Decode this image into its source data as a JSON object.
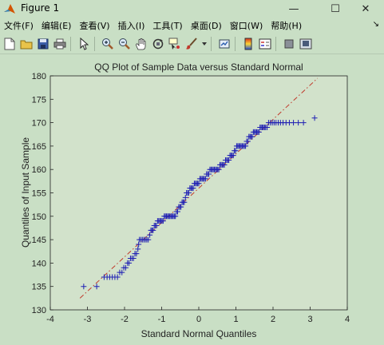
{
  "window": {
    "title": "Figure 1",
    "minimize_glyph": "—",
    "maximize_glyph": "☐",
    "close_glyph": "✕"
  },
  "menubar": {
    "items": [
      "文件(F)",
      "编辑(E)",
      "查看(V)",
      "插入(I)",
      "工具(T)",
      "桌面(D)",
      "窗口(W)",
      "帮助(H)"
    ],
    "overflow_arrow": "↘"
  },
  "toolbar": {
    "icons": [
      "new-figure-icon",
      "open-file-icon",
      "save-icon",
      "print-icon",
      "select-arrow-icon",
      "zoom-in-icon",
      "zoom-out-icon",
      "pan-hand-icon",
      "rotate-3d-icon",
      "data-cursor-icon",
      "brush-icon",
      "link-plot-icon",
      "colorbar-icon",
      "legend-icon",
      "hide-plot-tools-icon",
      "show-plot-tools-icon"
    ]
  },
  "colors": {
    "figure_bg": "#c9dfc5",
    "axes_bg": "#d2e2cb",
    "marker": "#1f1fb4",
    "reference_line": "#c0392b"
  },
  "chart_data": {
    "type": "scatter",
    "title": "QQ Plot of Sample Data versus Standard Normal",
    "xlabel": "Standard Normal Quantiles",
    "ylabel": "Quantiles of Input Sample",
    "xlim": [
      -4,
      4
    ],
    "ylim": [
      130,
      180
    ],
    "xticks": [
      "-4",
      "-3",
      "-2",
      "-1",
      "0",
      "1",
      "2",
      "3",
      "4"
    ],
    "yticks": [
      "130",
      "135",
      "140",
      "145",
      "150",
      "155",
      "160",
      "165",
      "170",
      "175",
      "180"
    ],
    "marker": "+",
    "grid": false,
    "reference_line": {
      "style": "dash-dot",
      "x": [
        -3.2,
        3.2
      ],
      "y": [
        132.5,
        179.5
      ]
    },
    "points": [
      [
        -3.1,
        135
      ],
      [
        -2.75,
        135
      ],
      [
        -2.55,
        137
      ],
      [
        -2.47,
        137
      ],
      [
        -2.4,
        137
      ],
      [
        -2.33,
        137
      ],
      [
        -2.26,
        137
      ],
      [
        -2.19,
        137
      ],
      [
        -2.13,
        138
      ],
      [
        -2.07,
        138
      ],
      [
        -2.02,
        139
      ],
      [
        -1.97,
        139
      ],
      [
        -1.92,
        140
      ],
      [
        -1.88,
        140
      ],
      [
        -1.84,
        141
      ],
      [
        -1.8,
        141
      ],
      [
        -1.76,
        141
      ],
      [
        -1.72,
        142
      ],
      [
        -1.68,
        142
      ],
      [
        -1.64,
        143
      ],
      [
        -1.62,
        144
      ],
      [
        -1.6,
        145
      ],
      [
        -1.56,
        145
      ],
      [
        -1.52,
        145
      ],
      [
        -1.48,
        145
      ],
      [
        -1.44,
        145
      ],
      [
        -1.4,
        145
      ],
      [
        -1.36,
        145
      ],
      [
        -1.32,
        146
      ],
      [
        -1.29,
        147
      ],
      [
        -1.26,
        147
      ],
      [
        -1.23,
        147
      ],
      [
        -1.2,
        148
      ],
      [
        -1.17,
        148
      ],
      [
        -1.14,
        148
      ],
      [
        -1.11,
        149
      ],
      [
        -1.08,
        149
      ],
      [
        -1.05,
        149
      ],
      [
        -1.02,
        149
      ],
      [
        -0.99,
        149
      ],
      [
        -0.96,
        149
      ],
      [
        -0.93,
        150
      ],
      [
        -0.9,
        150
      ],
      [
        -0.87,
        150
      ],
      [
        -0.84,
        150
      ],
      [
        -0.81,
        150
      ],
      [
        -0.78,
        150
      ],
      [
        -0.75,
        150
      ],
      [
        -0.72,
        150
      ],
      [
        -0.69,
        150
      ],
      [
        -0.66,
        150
      ],
      [
        -0.63,
        150
      ],
      [
        -0.6,
        151
      ],
      [
        -0.57,
        151
      ],
      [
        -0.54,
        152
      ],
      [
        -0.51,
        152
      ],
      [
        -0.48,
        152
      ],
      [
        -0.45,
        153
      ],
      [
        -0.42,
        153
      ],
      [
        -0.39,
        153
      ],
      [
        -0.36,
        154
      ],
      [
        -0.33,
        155
      ],
      [
        -0.3,
        155
      ],
      [
        -0.27,
        155
      ],
      [
        -0.24,
        156
      ],
      [
        -0.21,
        156
      ],
      [
        -0.18,
        156
      ],
      [
        -0.15,
        156
      ],
      [
        -0.12,
        157
      ],
      [
        -0.09,
        157
      ],
      [
        -0.06,
        157
      ],
      [
        -0.03,
        157
      ],
      [
        0,
        157
      ],
      [
        0.03,
        158
      ],
      [
        0.06,
        158
      ],
      [
        0.09,
        158
      ],
      [
        0.12,
        158
      ],
      [
        0.15,
        158
      ],
      [
        0.18,
        158
      ],
      [
        0.21,
        159
      ],
      [
        0.24,
        159
      ],
      [
        0.27,
        159
      ],
      [
        0.3,
        160
      ],
      [
        0.33,
        160
      ],
      [
        0.36,
        160
      ],
      [
        0.39,
        160
      ],
      [
        0.42,
        160
      ],
      [
        0.45,
        160
      ],
      [
        0.48,
        160
      ],
      [
        0.51,
        160
      ],
      [
        0.54,
        160
      ],
      [
        0.57,
        161
      ],
      [
        0.6,
        161
      ],
      [
        0.63,
        161
      ],
      [
        0.66,
        161
      ],
      [
        0.69,
        161
      ],
      [
        0.72,
        162
      ],
      [
        0.75,
        162
      ],
      [
        0.78,
        162
      ],
      [
        0.81,
        162
      ],
      [
        0.84,
        163
      ],
      [
        0.87,
        163
      ],
      [
        0.9,
        163
      ],
      [
        0.93,
        163
      ],
      [
        0.96,
        164
      ],
      [
        0.99,
        164
      ],
      [
        1.02,
        165
      ],
      [
        1.05,
        165
      ],
      [
        1.08,
        165
      ],
      [
        1.11,
        165
      ],
      [
        1.14,
        165
      ],
      [
        1.17,
        165
      ],
      [
        1.2,
        165
      ],
      [
        1.23,
        165
      ],
      [
        1.26,
        165
      ],
      [
        1.29,
        166
      ],
      [
        1.32,
        166
      ],
      [
        1.35,
        167
      ],
      [
        1.38,
        167
      ],
      [
        1.41,
        167
      ],
      [
        1.44,
        167
      ],
      [
        1.47,
        168
      ],
      [
        1.5,
        168
      ],
      [
        1.53,
        168
      ],
      [
        1.56,
        168
      ],
      [
        1.59,
        168
      ],
      [
        1.62,
        168
      ],
      [
        1.65,
        169
      ],
      [
        1.68,
        169
      ],
      [
        1.71,
        169
      ],
      [
        1.74,
        169
      ],
      [
        1.77,
        169
      ],
      [
        1.8,
        169
      ],
      [
        1.84,
        169
      ],
      [
        1.88,
        170
      ],
      [
        1.93,
        170
      ],
      [
        1.98,
        170
      ],
      [
        2.03,
        170
      ],
      [
        2.08,
        170
      ],
      [
        2.14,
        170
      ],
      [
        2.2,
        170
      ],
      [
        2.27,
        170
      ],
      [
        2.35,
        170
      ],
      [
        2.44,
        170
      ],
      [
        2.55,
        170
      ],
      [
        2.68,
        170
      ],
      [
        2.82,
        170
      ],
      [
        3.12,
        171
      ]
    ]
  }
}
